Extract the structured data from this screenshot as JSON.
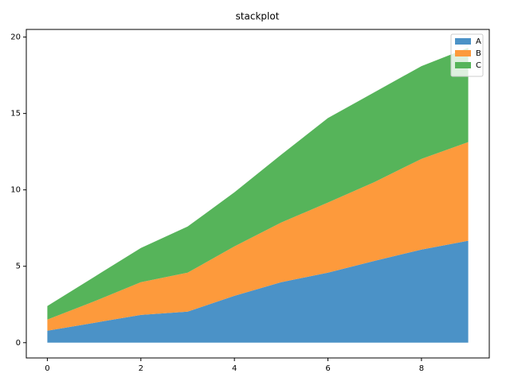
{
  "chart_data": {
    "type": "stackplot",
    "title": "stackplot",
    "x": [
      0,
      1,
      2,
      3,
      4,
      5,
      6,
      7,
      8,
      9
    ],
    "series": [
      {
        "name": "A",
        "color": "#4b92c7",
        "values": [
          0.78,
          1.3,
          1.82,
          2.03,
          3.07,
          3.96,
          4.58,
          5.36,
          6.09,
          6.67
        ]
      },
      {
        "name": "B",
        "color": "#fd9a3c",
        "values": [
          0.73,
          1.4,
          2.14,
          2.55,
          3.23,
          3.9,
          4.59,
          5.16,
          5.94,
          6.46
        ]
      },
      {
        "name": "C",
        "color": "#56b45a",
        "values": [
          0.89,
          1.6,
          2.24,
          3.02,
          3.54,
          4.44,
          5.53,
          5.88,
          6.07,
          6.17
        ]
      }
    ],
    "xlim": [
      -0.45,
      9.45
    ],
    "ylim": [
      -1,
      20.5
    ],
    "xticks": [
      0,
      2,
      4,
      6,
      8
    ],
    "yticks": [
      0,
      5,
      10,
      15,
      20
    ],
    "legend": "upper right"
  }
}
